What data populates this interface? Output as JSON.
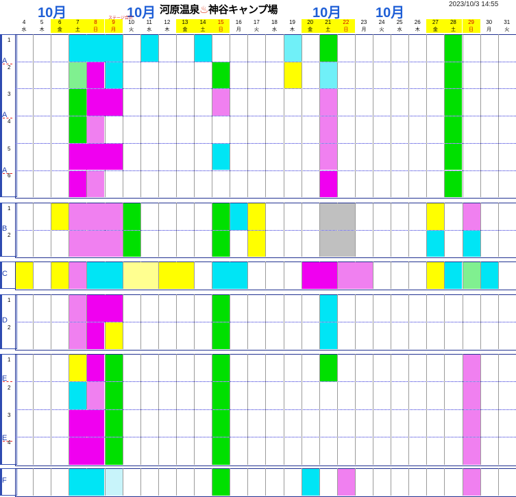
{
  "header": {
    "month_labels": [
      "10月",
      "10月",
      "10月",
      "10月"
    ],
    "title_prefix": "河原温泉",
    "title_spring_icon": "♨",
    "title_suffix": "神谷キャンプ場",
    "timestamp": "2023/10/3 14:55",
    "note": "ステージ合計"
  },
  "days": [
    {
      "d": "4",
      "w": "水",
      "hl": false
    },
    {
      "d": "5",
      "w": "木",
      "hl": false
    },
    {
      "d": "6",
      "w": "金",
      "hl": true
    },
    {
      "d": "7",
      "w": "土",
      "hl": true
    },
    {
      "d": "8",
      "w": "日",
      "hl": true,
      "red": true
    },
    {
      "d": "9",
      "w": "月",
      "hl": true,
      "red": true
    },
    {
      "d": "10",
      "w": "火",
      "hl": false
    },
    {
      "d": "11",
      "w": "水",
      "hl": false
    },
    {
      "d": "12",
      "w": "木",
      "hl": false
    },
    {
      "d": "13",
      "w": "金",
      "hl": true
    },
    {
      "d": "14",
      "w": "土",
      "hl": true
    },
    {
      "d": "15",
      "w": "日",
      "hl": true,
      "red": true
    },
    {
      "d": "16",
      "w": "月",
      "hl": false
    },
    {
      "d": "17",
      "w": "火",
      "hl": false
    },
    {
      "d": "18",
      "w": "水",
      "hl": false
    },
    {
      "d": "19",
      "w": "木",
      "hl": false
    },
    {
      "d": "20",
      "w": "金",
      "hl": true
    },
    {
      "d": "21",
      "w": "土",
      "hl": true
    },
    {
      "d": "22",
      "w": "日",
      "hl": true,
      "red": true
    },
    {
      "d": "23",
      "w": "月",
      "hl": false
    },
    {
      "d": "24",
      "w": "火",
      "hl": false
    },
    {
      "d": "25",
      "w": "水",
      "hl": false
    },
    {
      "d": "26",
      "w": "木",
      "hl": false
    },
    {
      "d": "27",
      "w": "金",
      "hl": true
    },
    {
      "d": "28",
      "w": "土",
      "hl": true
    },
    {
      "d": "29",
      "w": "日",
      "hl": true,
      "red": true
    },
    {
      "d": "30",
      "w": "月",
      "hl": false
    },
    {
      "d": "31",
      "w": "火",
      "hl": false
    }
  ],
  "sections": [
    {
      "label": "A",
      "rows": [
        "1",
        "2",
        "3",
        "4",
        "5",
        "6"
      ],
      "sublabels": [
        "A",
        "A",
        "A"
      ]
    },
    {
      "label": "B",
      "rows": [
        "1",
        "2"
      ]
    },
    {
      "label": "C",
      "rows": [
        ""
      ]
    },
    {
      "label": "D",
      "rows": [
        "1",
        "2"
      ]
    },
    {
      "label": "E",
      "rows": [
        "1",
        "2",
        "3",
        "4"
      ],
      "sublabels": [
        "E",
        "E"
      ]
    },
    {
      "label": "F",
      "rows": [
        ""
      ]
    }
  ],
  "colors": {
    "cyan": "#00e5f5",
    "green": "#00e000",
    "magenta": "#f000f0",
    "pink": "#f080f0",
    "yellow": "#ffff00",
    "lightcyan": "#70f0f8",
    "lightgreen": "#80f090",
    "paleyellow": "#ffff90",
    "gray": "#c0c0c0",
    "palecyan": "#c8f4fa"
  },
  "bookings": [
    {
      "row": "A1",
      "start": "7",
      "end": "9",
      "color": "cyan"
    },
    {
      "row": "A1",
      "start": "11",
      "end": "11",
      "color": "cyan"
    },
    {
      "row": "A1",
      "start": "14",
      "end": "14",
      "color": "cyan"
    },
    {
      "row": "A1",
      "start": "19",
      "end": "19",
      "color": "lightcyan"
    },
    {
      "row": "A1",
      "start": "21",
      "end": "21",
      "color": "green"
    },
    {
      "row": "A1",
      "start": "28",
      "end": "28",
      "color": "green"
    },
    {
      "row": "A2",
      "start": "7",
      "end": "7",
      "color": "lightgreen"
    },
    {
      "row": "A2",
      "start": "8",
      "end": "8",
      "color": "magenta"
    },
    {
      "row": "A2",
      "start": "9",
      "end": "9",
      "color": "cyan"
    },
    {
      "row": "A2",
      "start": "15",
      "end": "15",
      "color": "green"
    },
    {
      "row": "A2",
      "start": "19",
      "end": "19",
      "color": "yellow"
    },
    {
      "row": "A2",
      "start": "21",
      "end": "21",
      "color": "lightcyan"
    },
    {
      "row": "A2",
      "start": "28",
      "end": "28",
      "color": "green"
    },
    {
      "row": "A3",
      "start": "7",
      "end": "7",
      "color": "green"
    },
    {
      "row": "A3",
      "start": "8",
      "end": "9",
      "color": "magenta"
    },
    {
      "row": "A3",
      "start": "15",
      "end": "15",
      "color": "pink"
    },
    {
      "row": "A3",
      "start": "21",
      "end": "21",
      "color": "pink"
    },
    {
      "row": "A3",
      "start": "28",
      "end": "28",
      "color": "green"
    },
    {
      "row": "A4",
      "start": "7",
      "end": "7",
      "color": "green"
    },
    {
      "row": "A4",
      "start": "8",
      "end": "8",
      "color": "pink"
    },
    {
      "row": "A4",
      "start": "21",
      "end": "21",
      "color": "pink"
    },
    {
      "row": "A4",
      "start": "28",
      "end": "28",
      "color": "green"
    },
    {
      "row": "A5",
      "start": "7",
      "end": "9",
      "color": "magenta"
    },
    {
      "row": "A5",
      "start": "15",
      "end": "15",
      "color": "cyan"
    },
    {
      "row": "A5",
      "start": "21",
      "end": "21",
      "color": "pink"
    },
    {
      "row": "A5",
      "start": "28",
      "end": "28",
      "color": "green"
    },
    {
      "row": "A6",
      "start": "7",
      "end": "7",
      "color": "magenta"
    },
    {
      "row": "A6",
      "start": "8",
      "end": "8",
      "color": "pink"
    },
    {
      "row": "A6",
      "start": "21",
      "end": "21",
      "color": "magenta"
    },
    {
      "row": "A6",
      "start": "28",
      "end": "28",
      "color": "green"
    },
    {
      "row": "B1",
      "start": "6",
      "end": "6",
      "color": "yellow"
    },
    {
      "row": "B1",
      "start": "7",
      "end": "9",
      "color": "pink"
    },
    {
      "row": "B1",
      "start": "10",
      "end": "10",
      "color": "green"
    },
    {
      "row": "B1",
      "start": "15",
      "end": "15",
      "color": "green"
    },
    {
      "row": "B1",
      "start": "16",
      "end": "16",
      "color": "cyan"
    },
    {
      "row": "B1",
      "start": "17",
      "end": "17",
      "color": "yellow"
    },
    {
      "row": "B1",
      "start": "21",
      "end": "22",
      "color": "gray"
    },
    {
      "row": "B1",
      "start": "27",
      "end": "27",
      "color": "yellow"
    },
    {
      "row": "B1",
      "start": "29",
      "end": "29",
      "color": "pink"
    },
    {
      "row": "B2",
      "start": "7",
      "end": "9",
      "color": "pink"
    },
    {
      "row": "B2",
      "start": "10",
      "end": "10",
      "color": "green"
    },
    {
      "row": "B2",
      "start": "15",
      "end": "15",
      "color": "green"
    },
    {
      "row": "B2",
      "start": "17",
      "end": "17",
      "color": "yellow"
    },
    {
      "row": "B2",
      "start": "21",
      "end": "22",
      "color": "gray"
    },
    {
      "row": "B2",
      "start": "27",
      "end": "27",
      "color": "cyan"
    },
    {
      "row": "B2",
      "start": "29",
      "end": "29",
      "color": "cyan"
    },
    {
      "row": "C",
      "start": "4",
      "end": "4",
      "color": "yellow"
    },
    {
      "row": "C",
      "start": "6",
      "end": "6",
      "color": "yellow"
    },
    {
      "row": "C",
      "start": "7",
      "end": "7",
      "color": "pink"
    },
    {
      "row": "C",
      "start": "8",
      "end": "9",
      "color": "cyan"
    },
    {
      "row": "C",
      "start": "10",
      "end": "11",
      "color": "paleyellow"
    },
    {
      "row": "C",
      "start": "12",
      "end": "13",
      "color": "yellow"
    },
    {
      "row": "C",
      "start": "15",
      "end": "16",
      "color": "cyan"
    },
    {
      "row": "C",
      "start": "20",
      "end": "21",
      "color": "magenta"
    },
    {
      "row": "C",
      "start": "22",
      "end": "23",
      "color": "pink"
    },
    {
      "row": "C",
      "start": "27",
      "end": "27",
      "color": "yellow"
    },
    {
      "row": "C",
      "start": "28",
      "end": "28",
      "color": "cyan"
    },
    {
      "row": "C",
      "start": "29",
      "end": "29",
      "color": "lightgreen"
    },
    {
      "row": "C",
      "start": "30",
      "end": "30",
      "color": "cyan"
    },
    {
      "row": "D1",
      "start": "7",
      "end": "7",
      "color": "pink"
    },
    {
      "row": "D1",
      "start": "8",
      "end": "9",
      "color": "magenta"
    },
    {
      "row": "D1",
      "start": "15",
      "end": "15",
      "color": "green"
    },
    {
      "row": "D1",
      "start": "21",
      "end": "21",
      "color": "cyan"
    },
    {
      "row": "D2",
      "start": "7",
      "end": "7",
      "color": "pink"
    },
    {
      "row": "D2",
      "start": "8",
      "end": "8",
      "color": "magenta"
    },
    {
      "row": "D2",
      "start": "9",
      "end": "9",
      "color": "yellow"
    },
    {
      "row": "D2",
      "start": "15",
      "end": "15",
      "color": "green"
    },
    {
      "row": "D2",
      "start": "21",
      "end": "21",
      "color": "cyan"
    },
    {
      "row": "E1",
      "start": "7",
      "end": "7",
      "color": "yellow"
    },
    {
      "row": "E1",
      "start": "8",
      "end": "8",
      "color": "magenta"
    },
    {
      "row": "E1",
      "start": "9",
      "end": "9",
      "color": "green"
    },
    {
      "row": "E1",
      "start": "15",
      "end": "15",
      "color": "green"
    },
    {
      "row": "E1",
      "start": "21",
      "end": "21",
      "color": "green"
    },
    {
      "row": "E1",
      "start": "29",
      "end": "29",
      "color": "pink"
    },
    {
      "row": "E2",
      "start": "7",
      "end": "7",
      "color": "cyan"
    },
    {
      "row": "E2",
      "start": "8",
      "end": "8",
      "color": "pink"
    },
    {
      "row": "E2",
      "start": "9",
      "end": "9",
      "color": "green"
    },
    {
      "row": "E2",
      "start": "15",
      "end": "15",
      "color": "green"
    },
    {
      "row": "E2",
      "start": "29",
      "end": "29",
      "color": "pink"
    },
    {
      "row": "E3",
      "start": "7",
      "end": "8",
      "color": "magenta"
    },
    {
      "row": "E3",
      "start": "9",
      "end": "9",
      "color": "green"
    },
    {
      "row": "E3",
      "start": "15",
      "end": "15",
      "color": "green"
    },
    {
      "row": "E3",
      "start": "29",
      "end": "29",
      "color": "pink"
    },
    {
      "row": "E4",
      "start": "7",
      "end": "8",
      "color": "magenta"
    },
    {
      "row": "E4",
      "start": "9",
      "end": "9",
      "color": "green"
    },
    {
      "row": "E4",
      "start": "15",
      "end": "15",
      "color": "green"
    },
    {
      "row": "E4",
      "start": "29",
      "end": "29",
      "color": "pink"
    },
    {
      "row": "F",
      "start": "7",
      "end": "8",
      "color": "cyan"
    },
    {
      "row": "F",
      "start": "9",
      "end": "9",
      "color": "palecyan"
    },
    {
      "row": "F",
      "start": "15",
      "end": "15",
      "color": "green"
    },
    {
      "row": "F",
      "start": "20",
      "end": "20",
      "color": "cyan"
    },
    {
      "row": "F",
      "start": "22",
      "end": "22",
      "color": "pink"
    },
    {
      "row": "F",
      "start": "29",
      "end": "29",
      "color": "pink"
    }
  ]
}
